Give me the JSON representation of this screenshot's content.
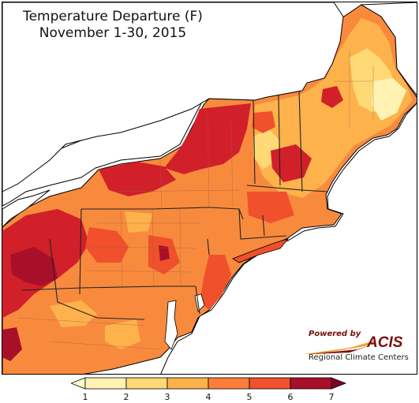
{
  "title": {
    "line1": "Temperature Departure (F)",
    "line2": "November 1-30, 2015"
  },
  "logo": {
    "powered_by": "Powered by",
    "acis": "ACIS",
    "rcc": "Regional Climate Centers"
  },
  "legend": {
    "ticks": [
      "1",
      "2",
      "3",
      "4",
      "5",
      "6",
      "7"
    ],
    "colors": [
      "#fff2b3",
      "#fed976",
      "#fdb24c",
      "#fc7e39",
      "#f0502b",
      "#d1202a",
      "#a8102a"
    ],
    "below_color": "#ffffcc",
    "above_color": "#800026"
  },
  "map": {
    "region": "Northeast United States",
    "water_color": "#ffffff",
    "land_outline_color": "#000000",
    "county_line_color": "#9a6040"
  }
}
